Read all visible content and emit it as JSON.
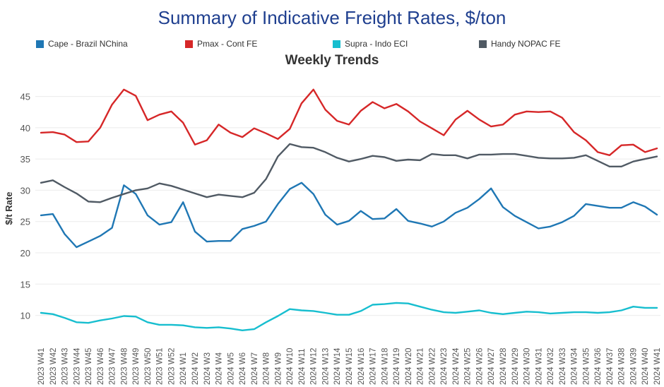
{
  "chart_data": {
    "type": "line",
    "title": "Summary of Indicative Freight Rates, $/ton",
    "subtitle": "Weekly Trends",
    "xlabel": "",
    "ylabel": "$/t Rate",
    "ylim": [
      6,
      48
    ],
    "yticks": [
      10,
      15,
      20,
      25,
      30,
      35,
      40,
      45
    ],
    "grid": "horizontal",
    "legend_position": "top",
    "categories": [
      "2023 W41",
      "2023 W42",
      "2023 W43",
      "2023 W44",
      "2023 W45",
      "2023 W46",
      "2023 W47",
      "2023 W48",
      "2023 W49",
      "2023 W50",
      "2023 W51",
      "2023 W52",
      "2024 W1",
      "2024 W2",
      "2024 W3",
      "2024 W4",
      "2024 W5",
      "2024 W6",
      "2024 W7",
      "2024 W8",
      "2024 W9",
      "2024 W10",
      "2024 W11",
      "2024 W12",
      "2024 W13",
      "2024 W14",
      "2024 W15",
      "2024 W16",
      "2024 W17",
      "2024 W18",
      "2024 W19",
      "2024 W20",
      "2024 W21",
      "2024 W22",
      "2024 W23",
      "2024 W24",
      "2024 W25",
      "2024 W26",
      "2024 W27",
      "2024 W28",
      "2024 W29",
      "2024 W30",
      "2024 W31",
      "2024 W32",
      "2024 W33",
      "2024 W34",
      "2024 W35",
      "2024 W36",
      "2024 W37",
      "2024 W38",
      "2024 W39",
      "2024 W40",
      "2024 W41"
    ],
    "series": [
      {
        "name": "Cape - Brazil NChina",
        "color": "#1f77b4",
        "values": [
          26.0,
          26.2,
          23.0,
          20.9,
          21.8,
          22.7,
          24.0,
          30.8,
          29.4,
          26.0,
          24.5,
          24.9,
          28.1,
          23.4,
          21.8,
          21.9,
          21.9,
          23.8,
          24.3,
          25.0,
          27.8,
          30.2,
          31.2,
          29.4,
          26.1,
          24.5,
          25.1,
          26.7,
          25.4,
          25.5,
          27.0,
          25.1,
          24.7,
          24.2,
          25.0,
          26.4,
          27.2,
          28.6,
          30.3,
          27.3,
          25.9,
          24.9,
          23.9,
          24.2,
          24.9,
          25.9,
          27.8,
          27.5,
          27.2,
          27.2,
          28.1,
          27.4,
          26.1
        ]
      },
      {
        "name": "Pmax - Cont FE",
        "color": "#d62728",
        "values": [
          39.2,
          39.3,
          38.9,
          37.7,
          37.8,
          40.0,
          43.7,
          46.1,
          45.1,
          41.2,
          42.1,
          42.6,
          40.8,
          37.3,
          38.0,
          40.5,
          39.2,
          38.5,
          39.9,
          39.1,
          38.2,
          39.8,
          43.9,
          46.1,
          42.9,
          41.1,
          40.5,
          42.7,
          44.1,
          43.1,
          43.8,
          42.6,
          41.0,
          39.9,
          38.8,
          41.3,
          42.7,
          41.3,
          40.2,
          40.5,
          42.1,
          42.6,
          42.5,
          42.6,
          41.6,
          39.3,
          38.0,
          36.1,
          35.6,
          37.2,
          37.3,
          36.1,
          36.7
        ]
      },
      {
        "name": "Supra - Indo ECI",
        "color": "#17becf",
        "values": [
          10.4,
          10.2,
          9.6,
          8.9,
          8.8,
          9.2,
          9.5,
          9.9,
          9.8,
          8.9,
          8.5,
          8.5,
          8.4,
          8.1,
          8.0,
          8.1,
          7.9,
          7.6,
          7.8,
          8.9,
          9.9,
          11.0,
          10.8,
          10.7,
          10.4,
          10.1,
          10.1,
          10.7,
          11.7,
          11.8,
          12.0,
          11.9,
          11.4,
          10.9,
          10.5,
          10.4,
          10.6,
          10.8,
          10.4,
          10.2,
          10.4,
          10.6,
          10.5,
          10.3,
          10.4,
          10.5,
          10.5,
          10.4,
          10.5,
          10.8,
          11.4,
          11.2,
          11.2
        ]
      },
      {
        "name": "Handy NOPAC FE",
        "color": "#505a64",
        "values": [
          31.2,
          31.6,
          30.5,
          29.5,
          28.2,
          28.1,
          28.8,
          29.4,
          30.0,
          30.3,
          31.1,
          30.7,
          30.1,
          29.5,
          28.9,
          29.3,
          29.1,
          28.9,
          29.6,
          31.8,
          35.4,
          37.4,
          36.9,
          36.8,
          36.1,
          35.2,
          34.6,
          35.0,
          35.5,
          35.3,
          34.7,
          34.9,
          34.8,
          35.8,
          35.6,
          35.6,
          35.1,
          35.7,
          35.7,
          35.8,
          35.8,
          35.5,
          35.2,
          35.1,
          35.1,
          35.2,
          35.6,
          34.7,
          33.8,
          33.8,
          34.6,
          35.0,
          35.4
        ]
      }
    ]
  }
}
